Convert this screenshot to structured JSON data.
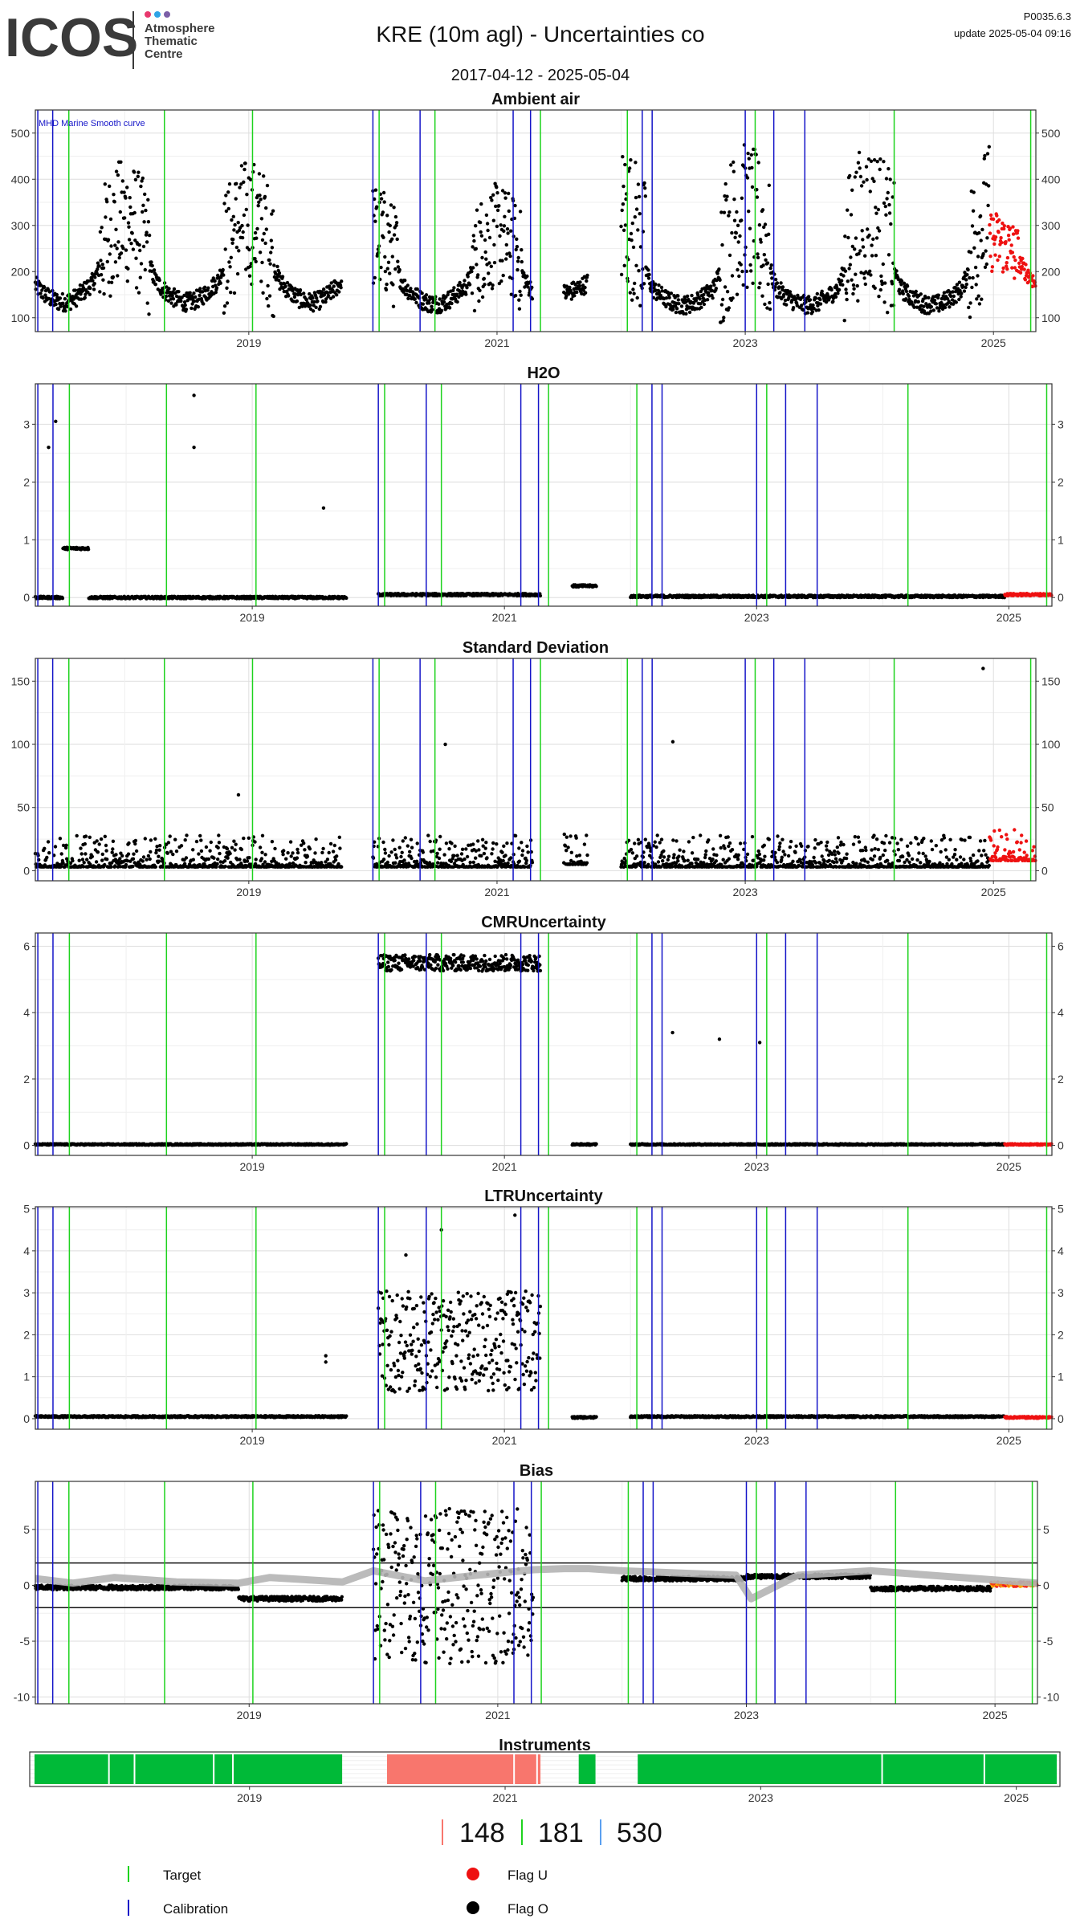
{
  "header": {
    "logo_text": "ICOS",
    "logo_subtitle": [
      "Atmosphere",
      "Thematic",
      "Centre"
    ],
    "logo_dot_colors": [
      "#e8386d",
      "#2fa3e6",
      "#7b5ea7"
    ],
    "title": "KRE  (10m agl) - Uncertainties co",
    "date_range": "2017-04-12 - 2025-05-04",
    "version": "P0035.6.3",
    "update": "update  2025-05-04 09:16"
  },
  "colors": {
    "target": "#1ed31e",
    "calibration": "#1414c8",
    "flag_u": "#ee1111",
    "flag_o": "#000000",
    "smooth": "#b4b4b4",
    "bias_red_points": "#ee2222",
    "bias_orange_points": "#ffa500",
    "instrument_green": "#00ba38",
    "instrument_salmon": "#f8766d",
    "panel_border": "#333333",
    "grid_major": "#dedede",
    "grid_minor": "#efefef"
  },
  "chart_data": [
    {
      "type": "scatter",
      "title": "Ambient air",
      "annotation": "MHD Marine Smooth curve",
      "x_range": [
        "2017-04-12",
        "2025-05-04"
      ],
      "x_ticks": [
        "2019",
        "2021",
        "2023",
        "2025"
      ],
      "ylim": [
        70,
        550
      ],
      "y_ticks": [
        100,
        200,
        300,
        400,
        500
      ],
      "segments": [
        {
          "start": "2017-04-12",
          "end": "2019-10-01",
          "flag": "O",
          "seasonal": [
            100,
            175,
            480
          ]
        },
        {
          "start": "2020-01-01",
          "end": "2021-04-15",
          "flag": "O",
          "seasonal": [
            100,
            165,
            420
          ]
        },
        {
          "start": "2021-07-15",
          "end": "2021-09-25",
          "flag": "O",
          "seasonal": [
            130,
            175,
            310
          ]
        },
        {
          "start": "2022-01-01",
          "end": "2024-12-20",
          "flag": "O",
          "seasonal": [
            100,
            160,
            520
          ]
        },
        {
          "start": "2024-12-20",
          "end": "2025-05-04",
          "flag": "U",
          "seasonal": [
            110,
            200,
            350
          ]
        }
      ]
    },
    {
      "type": "scatter",
      "title": "H2O",
      "x_range": [
        "2017-04-12",
        "2025-05-04"
      ],
      "x_ticks": [
        "2019",
        "2021",
        "2023",
        "2025"
      ],
      "ylim": [
        -0.15,
        3.7
      ],
      "y_ticks": [
        0,
        1,
        2,
        3
      ],
      "segments": [
        {
          "start": "2017-04-12",
          "end": "2017-07-01",
          "flag": "O",
          "base": 0.0
        },
        {
          "start": "2017-07-01",
          "end": "2017-09-15",
          "flag": "O",
          "base": 0.85
        },
        {
          "start": "2017-09-15",
          "end": "2019-10-01",
          "flag": "O",
          "base": 0.0
        },
        {
          "start": "2020-01-01",
          "end": "2021-04-15",
          "flag": "O",
          "base": 0.05
        },
        {
          "start": "2021-07-15",
          "end": "2021-09-25",
          "flag": "O",
          "base": 0.2
        },
        {
          "start": "2022-01-01",
          "end": "2024-12-20",
          "flag": "O",
          "base": 0.02
        },
        {
          "start": "2024-12-20",
          "end": "2025-05-04",
          "flag": "U",
          "base": 0.05
        }
      ],
      "outliers": [
        [
          "2018-07-15",
          3.5
        ],
        [
          "2018-07-15",
          2.6
        ],
        [
          "2017-06-10",
          3.05
        ],
        [
          "2017-05-20",
          2.6
        ],
        [
          "2019-07-25",
          1.55
        ]
      ]
    },
    {
      "type": "scatter",
      "title": "Standard Deviation",
      "x_range": [
        "2017-04-12",
        "2025-05-04"
      ],
      "x_ticks": [
        "2019",
        "2021",
        "2023",
        "2025"
      ],
      "ylim": [
        -8,
        168
      ],
      "y_ticks": [
        0,
        50,
        100,
        150
      ],
      "segments": [
        {
          "start": "2017-04-12",
          "end": "2019-10-01",
          "flag": "O",
          "base": 3
        },
        {
          "start": "2020-01-01",
          "end": "2021-04-15",
          "flag": "O",
          "base": 3
        },
        {
          "start": "2021-07-15",
          "end": "2021-09-25",
          "flag": "O",
          "base": 5
        },
        {
          "start": "2022-01-01",
          "end": "2024-12-20",
          "flag": "O",
          "base": 3
        },
        {
          "start": "2024-12-20",
          "end": "2025-05-04",
          "flag": "U",
          "base": 8
        }
      ],
      "outliers": [
        [
          "2024-12-01",
          160
        ],
        [
          "2020-08-01",
          100
        ],
        [
          "2022-06-01",
          102
        ],
        [
          "2018-12-01",
          60
        ]
      ]
    },
    {
      "type": "scatter",
      "title": "CMRUncertainty",
      "x_range": [
        "2017-04-12",
        "2025-05-04"
      ],
      "x_ticks": [
        "2019",
        "2021",
        "2023",
        "2025"
      ],
      "ylim": [
        -0.3,
        6.4
      ],
      "y_ticks": [
        0,
        2,
        4,
        6
      ],
      "segments": [
        {
          "start": "2017-04-12",
          "end": "2019-10-01",
          "flag": "O",
          "base": 0.03
        },
        {
          "start": "2020-01-01",
          "end": "2021-04-15",
          "flag": "O",
          "base": 5.5
        },
        {
          "start": "2021-07-15",
          "end": "2021-09-25",
          "flag": "O",
          "base": 0.03
        },
        {
          "start": "2022-01-01",
          "end": "2024-12-20",
          "flag": "O",
          "base": 0.03
        },
        {
          "start": "2024-12-20",
          "end": "2025-05-04",
          "flag": "U",
          "base": 0.03
        }
      ],
      "outliers": [
        [
          "2022-05-01",
          3.4
        ],
        [
          "2022-09-15",
          3.2
        ],
        [
          "2023-01-10",
          3.1
        ]
      ]
    },
    {
      "type": "scatter",
      "title": "LTRUncertainty",
      "x_range": [
        "2017-04-12",
        "2025-05-04"
      ],
      "x_ticks": [
        "2019",
        "2021",
        "2023",
        "2025"
      ],
      "ylim": [
        -0.25,
        5.05
      ],
      "y_ticks": [
        0,
        1,
        2,
        3,
        4,
        5
      ],
      "segments": [
        {
          "start": "2017-04-12",
          "end": "2019-10-01",
          "flag": "O",
          "base": 0.05
        },
        {
          "start": "2020-01-01",
          "end": "2021-04-15",
          "flag": "O",
          "base": 1.6
        },
        {
          "start": "2021-07-15",
          "end": "2021-09-25",
          "flag": "O",
          "base": 0.03
        },
        {
          "start": "2022-01-01",
          "end": "2024-12-20",
          "flag": "O",
          "base": 0.05
        },
        {
          "start": "2024-12-20",
          "end": "2025-05-04",
          "flag": "U",
          "base": 0.03
        }
      ],
      "outliers": [
        [
          "2019-08-01",
          1.5
        ],
        [
          "2019-08-01",
          1.35
        ],
        [
          "2021-02-01",
          4.85
        ],
        [
          "2020-03-20",
          3.9
        ],
        [
          "2020-07-01",
          4.5
        ]
      ]
    },
    {
      "type": "scatter",
      "title": "Bias",
      "x_range": [
        "2017-04-12",
        "2025-05-04"
      ],
      "x_ticks": [
        "2019",
        "2021",
        "2023",
        "2025"
      ],
      "ylim": [
        -10.6,
        9.3
      ],
      "y_ticks": [
        -10,
        -5,
        0,
        5
      ],
      "reference_lines": [
        2,
        -2
      ],
      "segments": [
        {
          "start": "2017-04-12",
          "end": "2018-12-01",
          "flag": "O",
          "base": -0.2
        },
        {
          "start": "2018-12-01",
          "end": "2019-10-01",
          "flag": "O",
          "base": -1.2
        },
        {
          "start": "2020-01-01",
          "end": "2021-04-15",
          "flag": "O",
          "base": 0
        },
        {
          "start": "2022-01-01",
          "end": "2022-12-31",
          "flag": "O",
          "base": 0.6
        },
        {
          "start": "2022-12-31",
          "end": "2024-01-01",
          "flag": "O",
          "base": 0.8
        },
        {
          "start": "2024-01-01",
          "end": "2024-12-20",
          "flag": "O",
          "base": -0.3
        },
        {
          "start": "2024-12-20",
          "end": "2025-05-04",
          "flag": "U",
          "base": 0.1
        }
      ],
      "smooth_curve": [
        [
          "2017-04-12",
          0.6
        ],
        [
          "2017-08-01",
          0.2
        ],
        [
          "2017-12-01",
          0.7
        ],
        [
          "2018-06-01",
          0.3
        ],
        [
          "2018-12-01",
          0.2
        ],
        [
          "2019-03-01",
          0.7
        ],
        [
          "2019-10-01",
          0.3
        ],
        [
          "2020-01-01",
          1.3
        ],
        [
          "2020-06-01",
          0.4
        ],
        [
          "2020-11-01",
          0.9
        ],
        [
          "2021-04-15",
          1.4
        ],
        [
          "2021-07-15",
          1.5
        ],
        [
          "2021-09-25",
          1.5
        ],
        [
          "2022-01-01",
          1.3
        ],
        [
          "2022-12-01",
          0.9
        ],
        [
          "2023-01-15",
          -1.2
        ],
        [
          "2023-06-01",
          0.9
        ],
        [
          "2024-01-01",
          1.3
        ],
        [
          "2025-05-04",
          0.2
        ]
      ]
    }
  ],
  "events": {
    "target_years": [
      2017.55,
      2018.32,
      2019.03,
      2020.05,
      2020.5,
      2021.35,
      2022.05,
      2023.08,
      2024.2,
      2025.3
    ],
    "calibration_years": [
      2017.3,
      2017.42,
      2020.0,
      2020.38,
      2021.13,
      2021.27,
      2022.17,
      2022.25,
      2023.0,
      2023.23,
      2023.48
    ]
  },
  "instruments": {
    "title": "Instruments",
    "x_ticks": [
      "2019",
      "2021",
      "2023",
      "2025"
    ],
    "bars": [
      {
        "start": "2017-04-12",
        "end": "2019-10-01",
        "color": "green"
      },
      {
        "start": "2020-01-15",
        "end": "2021-04-20",
        "color": "salmon"
      },
      {
        "start": "2021-07-15",
        "end": "2021-09-25",
        "color": "green"
      },
      {
        "start": "2022-01-01",
        "end": "2025-05-04",
        "color": "green"
      }
    ]
  },
  "counts": {
    "flag_u_count": "148",
    "target_count": "181",
    "calibration_count": "530"
  },
  "legend": {
    "target": "Target",
    "calibration": "Calibration",
    "flag_u": "Flag U",
    "flag_o": "Flag O"
  }
}
